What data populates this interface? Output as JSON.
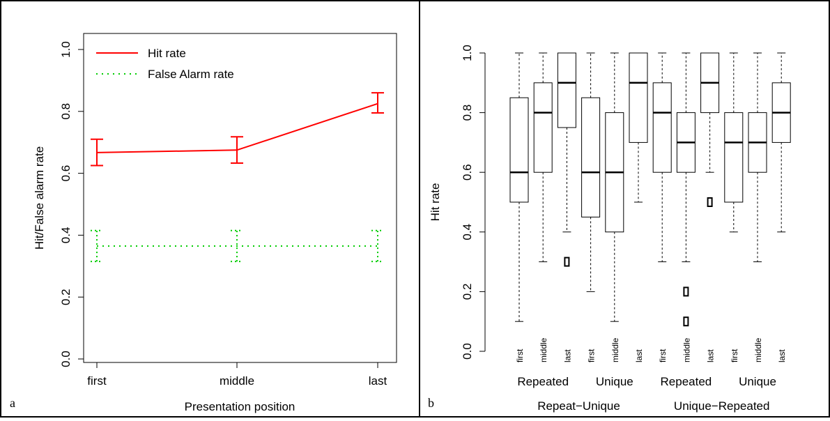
{
  "panels": [
    {
      "panel_label": "a",
      "chart_data": {
        "type": "line",
        "xlabel": "Presentation position",
        "ylabel": "Hit/False alarm rate",
        "categories": [
          "first",
          "middle",
          "last"
        ],
        "ylim": [
          0,
          1
        ],
        "yticks": [
          "0.0",
          "0.2",
          "0.4",
          "0.6",
          "0.8",
          "1.0"
        ],
        "legend_position": "top-left",
        "series": [
          {
            "name": "Hit rate",
            "color": "#ff0000",
            "line_style": "solid",
            "values": [
              0.667,
              0.675,
              0.825
            ],
            "err_low": [
              0.625,
              0.633,
              0.795
            ],
            "err_high": [
              0.71,
              0.718,
              0.86
            ]
          },
          {
            "name": "False Alarm rate",
            "color": "#00cc00",
            "line_style": "dotted",
            "values": [
              0.365,
              0.365,
              0.365
            ],
            "err_low": [
              0.315,
              0.315,
              0.315
            ],
            "err_high": [
              0.415,
              0.415,
              0.415
            ]
          }
        ]
      }
    },
    {
      "panel_label": "b",
      "chart_data": {
        "type": "box",
        "ylabel": "Hit rate",
        "ylim": [
          0,
          1
        ],
        "yticks": [
          "0.0",
          "0.2",
          "0.4",
          "0.6",
          "0.8",
          "1.0"
        ],
        "boxes": [
          {
            "label": "first",
            "min": 0.1,
            "q1": 0.5,
            "median": 0.6,
            "q3": 0.85,
            "max": 1.0,
            "outliers": []
          },
          {
            "label": "middle",
            "min": 0.3,
            "q1": 0.6,
            "median": 0.8,
            "q3": 0.9,
            "max": 1.0,
            "outliers": []
          },
          {
            "label": "last",
            "min": 0.4,
            "q1": 0.75,
            "median": 0.9,
            "q3": 1.0,
            "max": 1.0,
            "outliers": [
              0.3
            ]
          },
          {
            "label": "first",
            "min": 0.2,
            "q1": 0.45,
            "median": 0.6,
            "q3": 0.85,
            "max": 1.0,
            "outliers": []
          },
          {
            "label": "middle",
            "min": 0.1,
            "q1": 0.4,
            "median": 0.6,
            "q3": 0.8,
            "max": 1.0,
            "outliers": []
          },
          {
            "label": "last",
            "min": 0.5,
            "q1": 0.7,
            "median": 0.9,
            "q3": 1.0,
            "max": 1.0,
            "outliers": []
          },
          {
            "label": "first",
            "min": 0.3,
            "q1": 0.6,
            "median": 0.8,
            "q3": 0.9,
            "max": 1.0,
            "outliers": []
          },
          {
            "label": "middle",
            "min": 0.3,
            "q1": 0.6,
            "median": 0.7,
            "q3": 0.8,
            "max": 1.0,
            "outliers": [
              0.2,
              0.1
            ]
          },
          {
            "label": "last",
            "min": 0.6,
            "q1": 0.8,
            "median": 0.9,
            "q3": 1.0,
            "max": 1.0,
            "outliers": [
              0.5
            ]
          },
          {
            "label": "first",
            "min": 0.4,
            "q1": 0.5,
            "median": 0.7,
            "q3": 0.8,
            "max": 1.0,
            "outliers": []
          },
          {
            "label": "middle",
            "min": 0.3,
            "q1": 0.6,
            "median": 0.7,
            "q3": 0.8,
            "max": 1.0,
            "outliers": []
          },
          {
            "label": "last",
            "min": 0.4,
            "q1": 0.7,
            "median": 0.8,
            "q3": 0.9,
            "max": 1.0,
            "outliers": []
          }
        ],
        "subgroups": [
          {
            "label": "Repeated",
            "box_span": [
              0,
              2
            ]
          },
          {
            "label": "Unique",
            "box_span": [
              3,
              5
            ]
          },
          {
            "label": "Repeated",
            "box_span": [
              6,
              8
            ]
          },
          {
            "label": "Unique",
            "box_span": [
              9,
              11
            ]
          }
        ],
        "groups": [
          {
            "label": "Repeat−Unique",
            "box_span": [
              0,
              5
            ]
          },
          {
            "label": "Unique−Repeated",
            "box_span": [
              6,
              11
            ]
          }
        ]
      }
    }
  ]
}
